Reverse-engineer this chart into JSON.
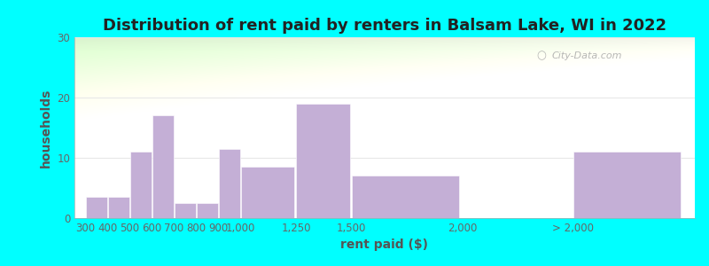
{
  "title": "Distribution of rent paid by renters in Balsam Lake, WI in 2022",
  "xlabel": "rent paid ($)",
  "ylabel": "households",
  "bar_values": [
    3.5,
    3.5,
    11,
    17,
    2.5,
    2.5,
    11.5,
    8.5,
    19,
    7,
    0,
    11
  ],
  "bar_color": "#c4afd6",
  "ylim": [
    0,
    30
  ],
  "yticks": [
    0,
    10,
    20,
    30
  ],
  "outer_bg": "#00ffff",
  "title_fontsize": 13,
  "axis_label_fontsize": 10,
  "tick_fontsize": 8.5,
  "watermark": "City-Data.com",
  "bar_positions": [
    300,
    400,
    500,
    600,
    700,
    800,
    900,
    1000,
    1250,
    1500,
    2000,
    2500
  ],
  "bar_widths": [
    100,
    100,
    100,
    100,
    100,
    100,
    100,
    250,
    250,
    500,
    500,
    500
  ],
  "xtick_positions": [
    300,
    400,
    500,
    600,
    700,
    800,
    900,
    1000,
    1250,
    1500,
    2000,
    2500
  ],
  "xtick_labels": [
    "300",
    "400",
    "500",
    "600",
    "700",
    "800",
    "900",
    "1,000",
    "1,250",
    "1,500",
    "2,000",
    "> 2,000"
  ],
  "xlim": [
    250,
    3050
  ],
  "grad_color_left": "#c8edb8",
  "grad_color_right": "#f0f0e4",
  "grid_color": "#e8e8e8"
}
